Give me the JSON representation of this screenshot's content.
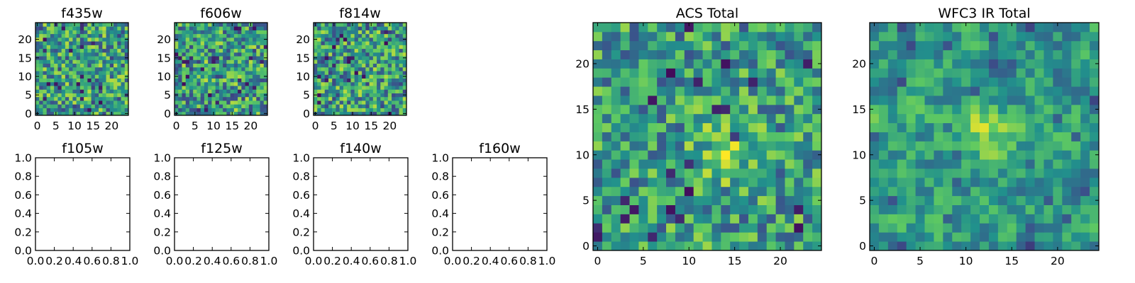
{
  "colormap": [
    "#440154",
    "#3b528b",
    "#21918c",
    "#5ec962",
    "#fde725"
  ],
  "chart_data": [
    {
      "type": "heatmap",
      "title": "f435w",
      "xlim": [
        -0.5,
        24.5
      ],
      "ylim": [
        -0.5,
        24.5
      ],
      "xticks": [
        0,
        5,
        10,
        15,
        20
      ],
      "yticks": [
        0,
        5,
        10,
        15,
        20
      ],
      "grid_size": 25,
      "seed": 11,
      "contrast": 1.0,
      "smooth": 0
    },
    {
      "type": "heatmap",
      "title": "f606w",
      "xlim": [
        -0.5,
        24.5
      ],
      "ylim": [
        -0.5,
        24.5
      ],
      "xticks": [
        0,
        5,
        10,
        15,
        20
      ],
      "yticks": [
        0,
        5,
        10,
        15,
        20
      ],
      "grid_size": 25,
      "seed": 23,
      "contrast": 1.0,
      "smooth": 0
    },
    {
      "type": "heatmap",
      "title": "f814w",
      "xlim": [
        -0.5,
        24.5
      ],
      "ylim": [
        -0.5,
        24.5
      ],
      "xticks": [
        0,
        5,
        10,
        15,
        20
      ],
      "yticks": [
        0,
        5,
        10,
        15,
        20
      ],
      "grid_size": 25,
      "seed": 37,
      "contrast": 1.0,
      "smooth": 0
    },
    {
      "type": "empty",
      "title": "f105w",
      "xlim": [
        0,
        1
      ],
      "ylim": [
        0,
        1
      ],
      "xticks": [
        "0.0",
        "0.2",
        "0.4",
        "0.6",
        "0.8",
        "1.0"
      ],
      "yticks": [
        "0.0",
        "0.2",
        "0.4",
        "0.6",
        "0.8",
        "1.0"
      ]
    },
    {
      "type": "empty",
      "title": "f125w",
      "xlim": [
        0,
        1
      ],
      "ylim": [
        0,
        1
      ],
      "xticks": [
        "0.0",
        "0.2",
        "0.4",
        "0.6",
        "0.8",
        "1.0"
      ],
      "yticks": [
        "0.0",
        "0.2",
        "0.4",
        "0.6",
        "0.8",
        "1.0"
      ]
    },
    {
      "type": "empty",
      "title": "f140w",
      "xlim": [
        0,
        1
      ],
      "ylim": [
        0,
        1
      ],
      "xticks": [
        "0.0",
        "0.2",
        "0.4",
        "0.6",
        "0.8",
        "1.0"
      ],
      "yticks": [
        "0.0",
        "0.2",
        "0.4",
        "0.6",
        "0.8",
        "1.0"
      ]
    },
    {
      "type": "empty",
      "title": "f160w",
      "xlim": [
        0,
        1
      ],
      "ylim": [
        0,
        1
      ],
      "xticks": [
        "0.0",
        "0.2",
        "0.4",
        "0.6",
        "0.8",
        "1.0"
      ],
      "yticks": [
        "0.0",
        "0.2",
        "0.4",
        "0.6",
        "0.8",
        "1.0"
      ]
    },
    {
      "type": "heatmap",
      "title": "ACS Total",
      "xlim": [
        -0.5,
        24.5
      ],
      "ylim": [
        -0.5,
        24.5
      ],
      "xticks": [
        0,
        5,
        10,
        15,
        20
      ],
      "yticks": [
        0,
        5,
        10,
        15,
        20
      ],
      "grid_size": 25,
      "seed": 51,
      "contrast": 0.85,
      "smooth": 0,
      "bright_center": [
        14,
        10
      ]
    },
    {
      "type": "heatmap",
      "title": "WFC3 IR Total",
      "xlim": [
        -0.5,
        24.5
      ],
      "ylim": [
        -0.5,
        24.5
      ],
      "xticks": [
        0,
        5,
        10,
        15,
        20
      ],
      "yticks": [
        0,
        5,
        10,
        15,
        20
      ],
      "grid_size": 25,
      "seed": 67,
      "contrast": 0.85,
      "smooth": 1,
      "bright_center": [
        12,
        13
      ]
    }
  ]
}
